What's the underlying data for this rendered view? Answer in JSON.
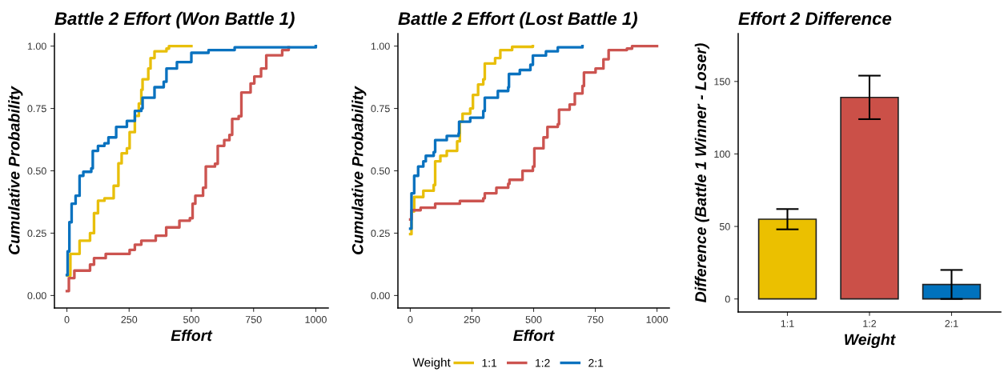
{
  "chart_data": [
    {
      "type": "step",
      "title": "Battle 2 Effort (Won Battle 1)",
      "xlabel": "Effort",
      "ylabel": "Cumulative Probability",
      "xlim": [
        -50,
        1050
      ],
      "ylim": [
        -0.05,
        1.05
      ],
      "xticks": [
        0,
        250,
        500,
        750,
        1000
      ],
      "yticks": [
        {
          "value": 0,
          "label": "0.00"
        },
        {
          "value": 0.25,
          "label": "0.25"
        },
        {
          "value": 0.5,
          "label": "0.50"
        },
        {
          "value": 0.75,
          "label": "0.75"
        },
        {
          "value": 1,
          "label": "1.00"
        }
      ],
      "grid": false,
      "legend": "bottom",
      "legend_title": "Weight",
      "series": [
        {
          "name": "1:1",
          "color": "#e8bf0b",
          "x": [
            3,
            14,
            51,
            93,
            109,
            125,
            151,
            188,
            207,
            220,
            241,
            252,
            273,
            289,
            299,
            304,
            327,
            336,
            352,
            400,
            410,
            500
          ],
          "values": [
            0.08,
            0.167,
            0.22,
            0.25,
            0.33,
            0.38,
            0.39,
            0.44,
            0.53,
            0.57,
            0.59,
            0.655,
            0.72,
            0.77,
            0.825,
            0.867,
            0.91,
            0.952,
            0.979,
            0.99,
            1.0,
            1.0
          ]
        },
        {
          "name": "1:2",
          "color": "#cc5450",
          "x": [
            0,
            8,
            30,
            93,
            109,
            156,
            252,
            273,
            299,
            357,
            399,
            452,
            494,
            505,
            516,
            547,
            558,
            595,
            606,
            632,
            653,
            664,
            690,
            701,
            738,
            753,
            780,
            801,
            865,
            891
          ],
          "values": [
            0.018,
            0.07,
            0.1,
            0.124,
            0.15,
            0.167,
            0.183,
            0.204,
            0.22,
            0.24,
            0.273,
            0.3,
            0.31,
            0.368,
            0.4,
            0.432,
            0.517,
            0.528,
            0.6,
            0.623,
            0.644,
            0.708,
            0.719,
            0.814,
            0.85,
            0.878,
            0.91,
            0.963,
            0.984,
            0.995
          ]
        },
        {
          "name": "2:1",
          "color": "#0a72bf",
          "x": [
            0,
            3,
            10,
            19,
            35,
            51,
            66,
            98,
            104,
            125,
            151,
            167,
            198,
            241,
            273,
            299,
            304,
            352,
            389,
            400,
            442,
            500,
            569,
            674,
            1000
          ],
          "values": [
            0.082,
            0.177,
            0.294,
            0.368,
            0.4,
            0.48,
            0.496,
            0.51,
            0.58,
            0.6,
            0.61,
            0.634,
            0.676,
            0.7,
            0.74,
            0.75,
            0.793,
            0.835,
            0.857,
            0.91,
            0.936,
            0.973,
            0.984,
            0.995,
            1.0
          ]
        }
      ]
    },
    {
      "type": "step",
      "title": "Battle 2 Effort (Lost Battle 1)",
      "xlabel": "Effort",
      "ylabel": "Cumulative Probability",
      "xlim": [
        -50,
        1050
      ],
      "ylim": [
        -0.05,
        1.05
      ],
      "xticks": [
        0,
        250,
        500,
        750,
        1000
      ],
      "yticks": [
        {
          "value": 0,
          "label": "0.00"
        },
        {
          "value": 0.25,
          "label": "0.25"
        },
        {
          "value": 0.5,
          "label": "0.50"
        },
        {
          "value": 0.75,
          "label": "0.75"
        },
        {
          "value": 1,
          "label": "1.00"
        }
      ],
      "grid": false,
      "series": [
        {
          "color": "#e8bf0b",
          "x": [
            0,
            5,
            16,
            53,
            95,
            101,
            122,
            148,
            190,
            201,
            212,
            243,
            254,
            275,
            296,
            302,
            344,
            365,
            413,
            497
          ],
          "values": [
            0.246,
            0.337,
            0.395,
            0.42,
            0.443,
            0.538,
            0.56,
            0.58,
            0.618,
            0.697,
            0.729,
            0.75,
            0.804,
            0.846,
            0.867,
            0.93,
            0.952,
            0.984,
            0.997,
            1.0
          ]
        },
        {
          "color": "#cc5450",
          "x": [
            0,
            5,
            42,
            101,
            201,
            296,
            302,
            349,
            397,
            402,
            455,
            497,
            503,
            540,
            556,
            598,
            603,
            646,
            667,
            698,
            704,
            751,
            783,
            804,
            878,
            899,
            1000
          ],
          "values": [
            0.305,
            0.342,
            0.352,
            0.368,
            0.379,
            0.39,
            0.41,
            0.432,
            0.448,
            0.464,
            0.5,
            0.517,
            0.59,
            0.634,
            0.676,
            0.687,
            0.745,
            0.766,
            0.81,
            0.84,
            0.894,
            0.91,
            0.947,
            0.984,
            0.99,
            1.0,
            1.0
          ]
        },
        {
          "color": "#0a72bf",
          "x": [
            0,
            5,
            16,
            32,
            53,
            63,
            95,
            101,
            148,
            196,
            198,
            243,
            296,
            302,
            355,
            397,
            400,
            444,
            487,
            497,
            550,
            598,
            698
          ],
          "values": [
            0.268,
            0.41,
            0.48,
            0.517,
            0.538,
            0.56,
            0.575,
            0.623,
            0.64,
            0.65,
            0.697,
            0.713,
            0.74,
            0.793,
            0.82,
            0.835,
            0.888,
            0.904,
            0.925,
            0.962,
            0.979,
            0.995,
            1.0
          ]
        }
      ]
    },
    {
      "type": "bar",
      "title": "Effort 2 Difference",
      "xlabel": "Weight",
      "ylabel": "Difference (Battle 1 Winner - Loser)",
      "categories": [
        "1:1",
        "1:2",
        "2:1"
      ],
      "values": [
        55,
        139,
        10
      ],
      "errors": [
        7,
        15,
        10
      ],
      "colors": [
        "#ebc000",
        "#cb5048",
        "#0072bd"
      ],
      "ylim": [
        -9,
        183
      ],
      "yticks": [
        0,
        50,
        100,
        150
      ],
      "grid": false
    }
  ]
}
